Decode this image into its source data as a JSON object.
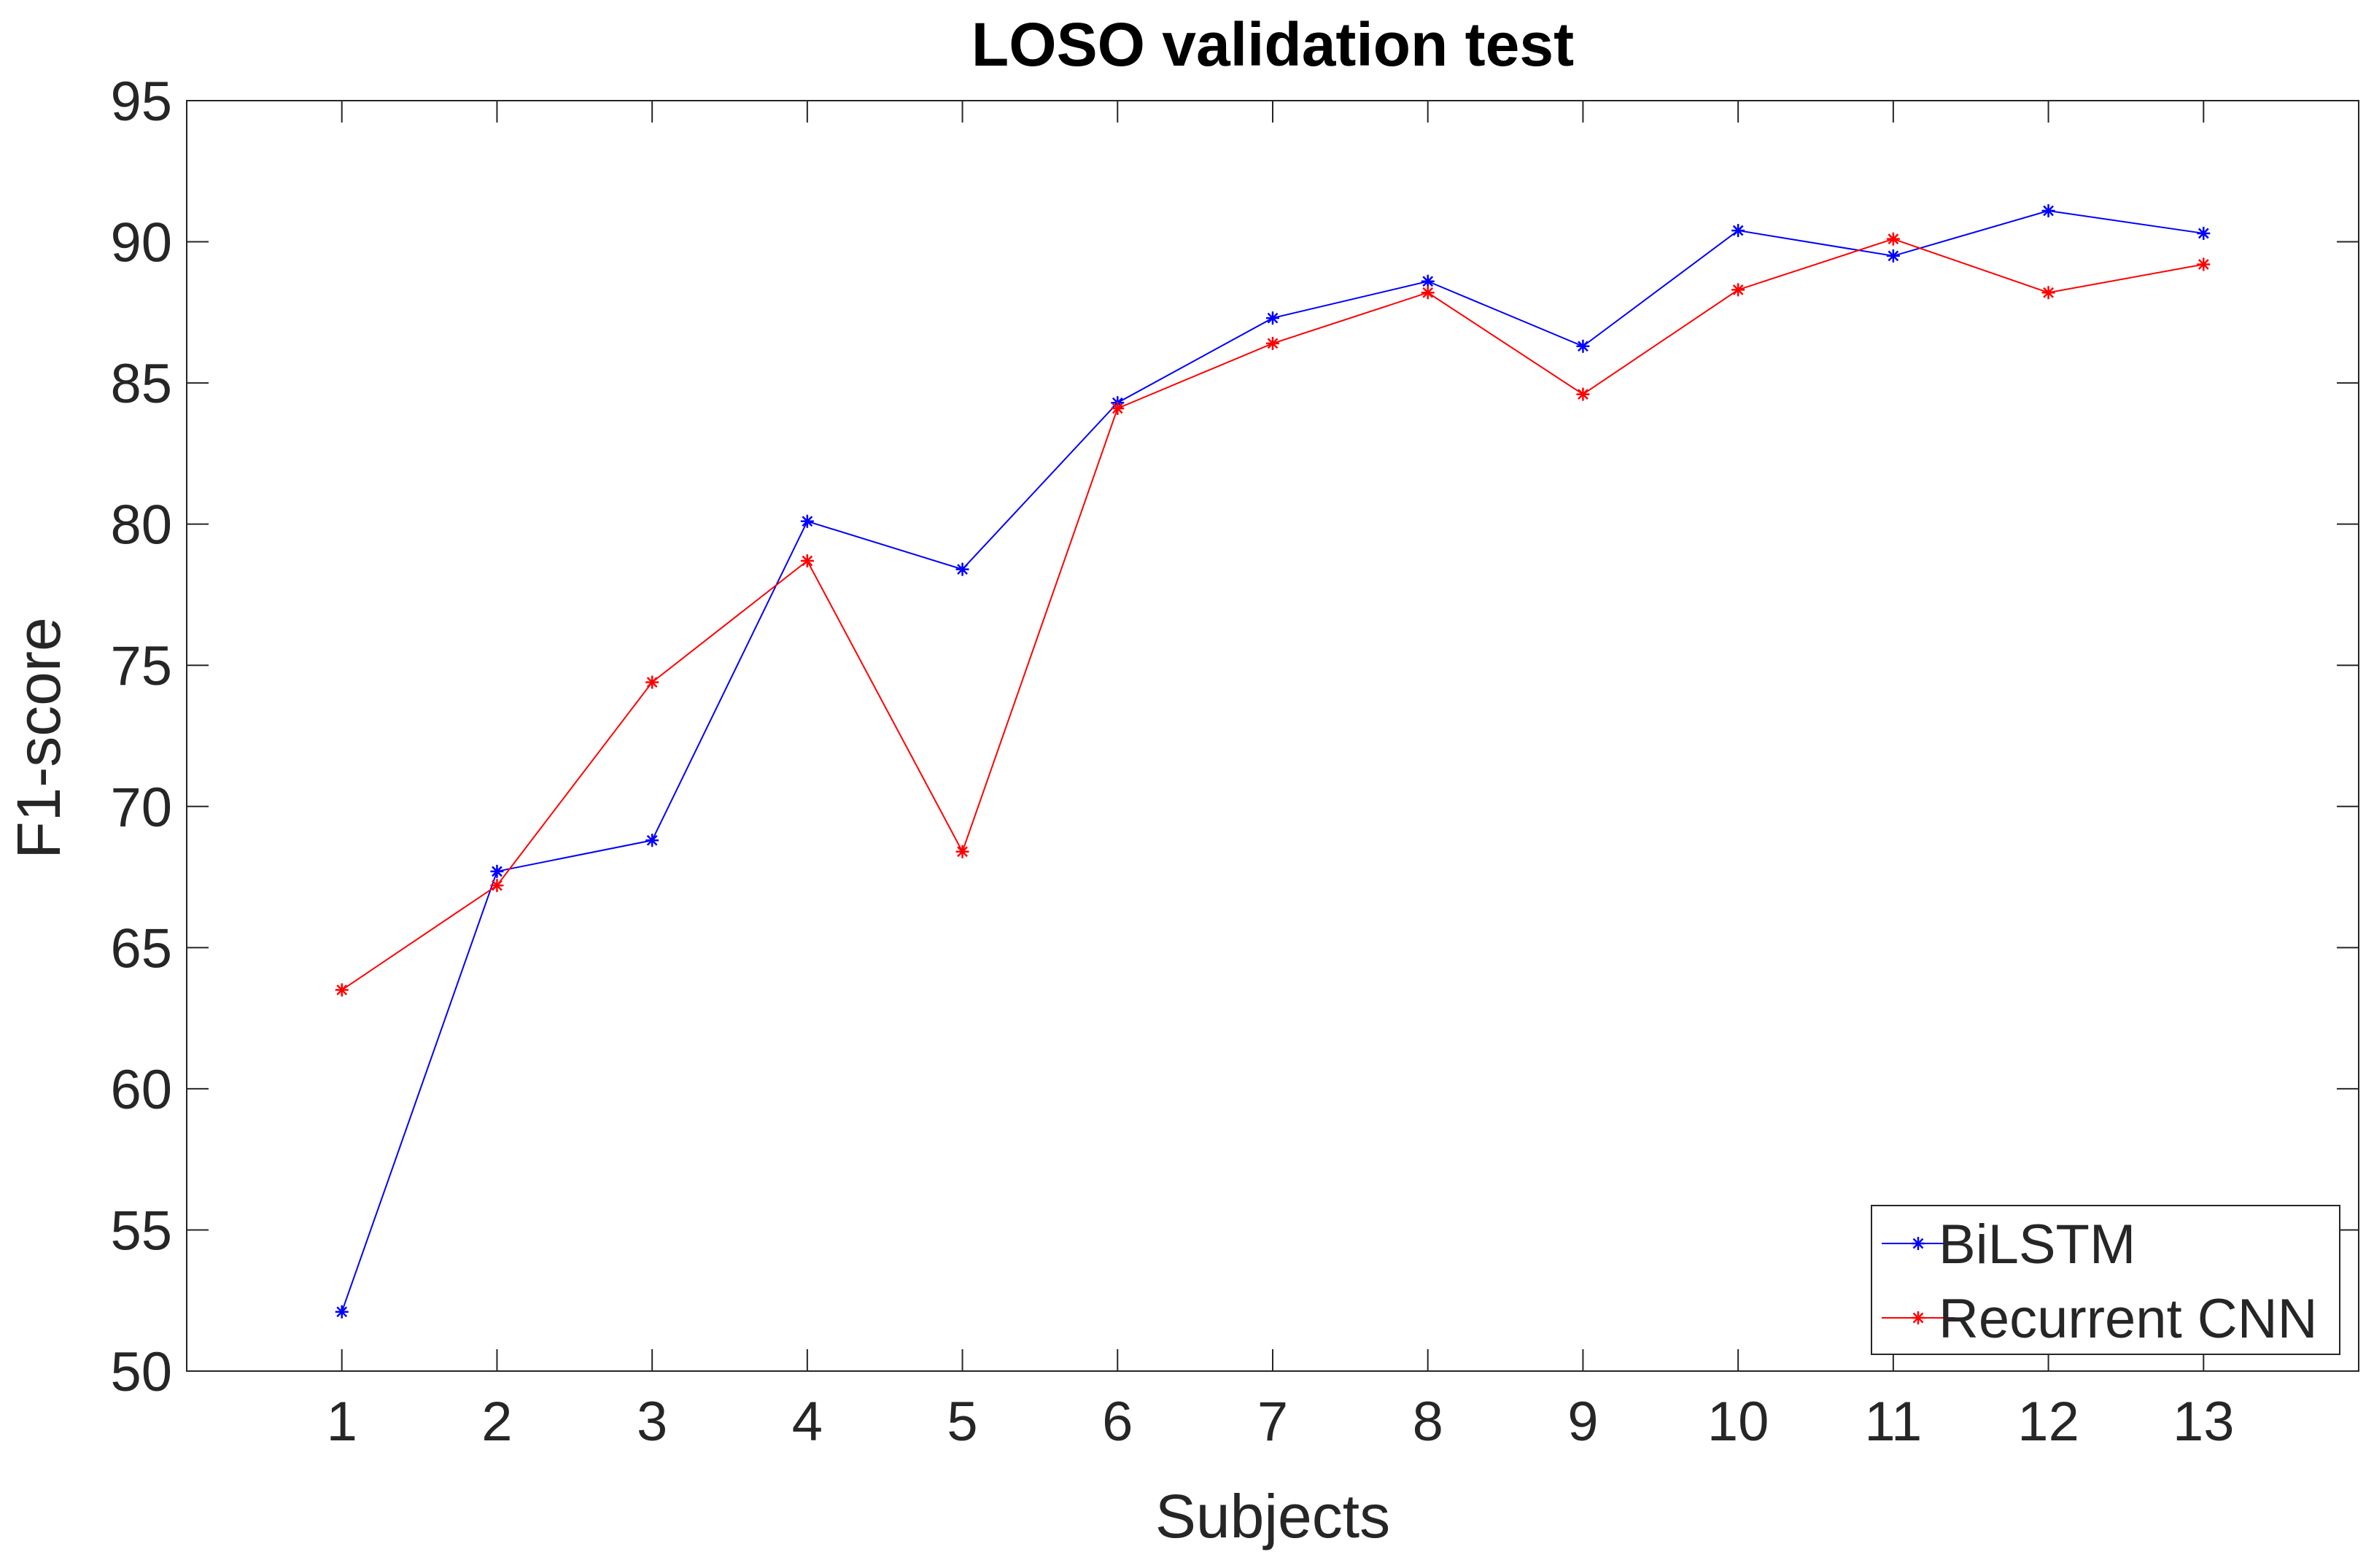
{
  "chart_data": {
    "type": "line",
    "title": "LOSO validation test",
    "xlabel": "Subjects",
    "ylabel": "F1-score",
    "x": [
      1,
      2,
      3,
      4,
      5,
      6,
      7,
      8,
      9,
      10,
      11,
      12,
      13
    ],
    "xlim": [
      0,
      14
    ],
    "ylim": [
      50,
      95
    ],
    "xticks": [
      1,
      2,
      3,
      4,
      5,
      6,
      7,
      8,
      9,
      10,
      11,
      12,
      13
    ],
    "yticks": [
      50,
      55,
      60,
      65,
      70,
      75,
      80,
      85,
      90,
      95
    ],
    "grid": false,
    "legend_position": "bottom-right",
    "marker": "*",
    "series": [
      {
        "name": "BiLSTM",
        "color": "#0000ff",
        "values": [
          52.1,
          67.7,
          68.8,
          80.1,
          78.4,
          84.3,
          87.3,
          88.6,
          86.3,
          90.4,
          89.5,
          91.1,
          90.3
        ]
      },
      {
        "name": "Recurrent CNN",
        "color": "#ff0000",
        "values": [
          63.5,
          67.2,
          74.4,
          78.7,
          68.4,
          84.1,
          86.4,
          88.2,
          84.6,
          88.3,
          90.1,
          88.2,
          89.2
        ]
      }
    ]
  }
}
